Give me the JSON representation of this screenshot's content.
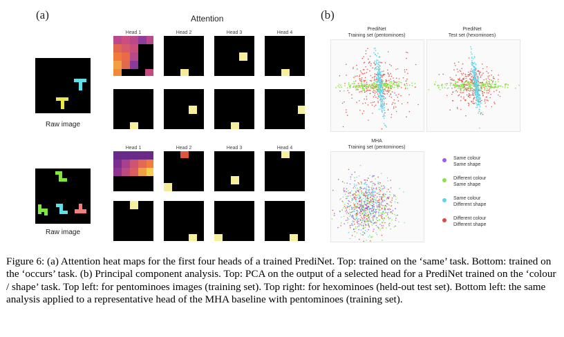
{
  "panel_a_label": "(a)",
  "panel_b_label": "(b)",
  "attention_title": "Attention",
  "head_labels": [
    "Head 1",
    "Head 2",
    "Head 3",
    "Head 4"
  ],
  "raw_image_label": "Raw image",
  "pca_titles": {
    "top_left": [
      "PrediNet",
      "Training set (pentominoes)"
    ],
    "top_right": [
      "PrediNet",
      "Test set (hexominoes)"
    ],
    "bottom_left": [
      "MHA",
      "Training set (pentominoes)"
    ]
  },
  "legend": [
    {
      "line1": "Same colour",
      "line2": "Same shape",
      "color": "#a05bea"
    },
    {
      "line1": "Different colour",
      "line2": "Same shape",
      "color": "#86e640"
    },
    {
      "line1": "Same colour",
      "line2": "Different shape",
      "color": "#5ed3ea"
    },
    {
      "line1": "Different colour",
      "line2": "Different shape",
      "color": "#e04a3e"
    }
  ],
  "caption": "Figure 6: (a) Attention heat maps for the first four heads of a trained PrediNet. Top: trained on the ‘same’ task. Bottom: trained on the ‘occurs’ task. (b) Principal component analysis. Top: PCA on the output of a selected head for a PrediNet trained on the ‘colour / shape’ task. Top left: for pentominoes images (training set). Top right: for hexominoes (held-out test set). Bottom left: the same analysis applied to a representative head of the MHA baseline with pentominoes (training set)."
}
